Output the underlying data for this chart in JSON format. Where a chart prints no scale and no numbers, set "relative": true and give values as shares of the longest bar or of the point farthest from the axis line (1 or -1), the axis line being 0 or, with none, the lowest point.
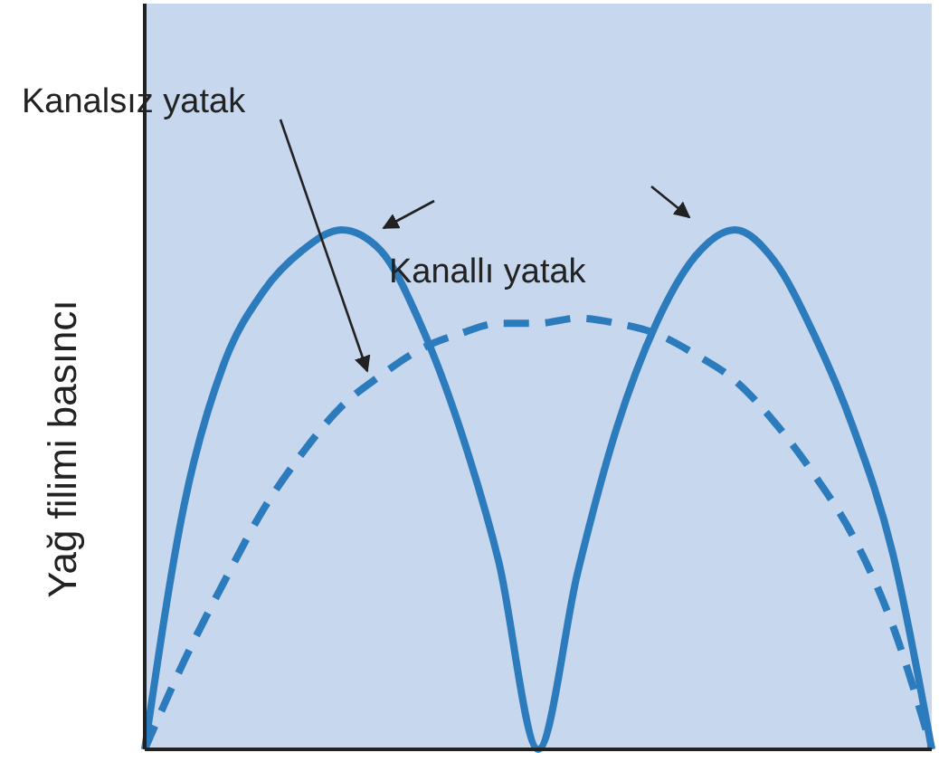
{
  "chart_data": {
    "type": "line",
    "relative": true,
    "ylabel": "Yağ filimi basıncı",
    "categories": [
      null,
      null,
      null,
      null,
      null,
      null,
      null,
      null,
      null,
      null,
      null,
      null,
      null,
      null,
      null,
      null,
      null,
      null,
      null,
      null,
      null
    ],
    "legend": false,
    "series": [
      {
        "name": "Kanallı yatak",
        "color": "#2b7bbd",
        "line_style": "solid",
        "values": [
          0,
          0.47,
          0.74,
          0.88,
          0.96,
          1,
          0.96,
          0.82,
          0.62,
          0.36,
          0,
          0.34,
          0.62,
          0.82,
          0.95,
          1,
          0.94,
          0.8,
          0.62,
          0.38,
          0
        ]
      },
      {
        "name": "Kanalsız yatak",
        "color": "#2b7bbd",
        "line_style": "dashed",
        "values": [
          0,
          0.17,
          0.32,
          0.46,
          0.57,
          0.66,
          0.72,
          0.77,
          0.8,
          0.82,
          0.82,
          0.83,
          0.82,
          0.8,
          0.76,
          0.71,
          0.63,
          0.53,
          0.41,
          0.24,
          0
        ]
      }
    ]
  }
}
